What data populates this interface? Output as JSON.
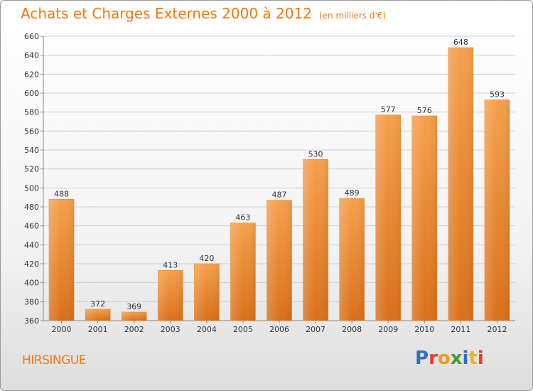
{
  "header": {
    "title": "Achats et Charges Externes 2000 à 2012",
    "subtitle": "(en milliers d'€)"
  },
  "footer": {
    "city": "HIRSINGUE",
    "logo_text": "Proxiti"
  },
  "colors": {
    "accent": "#f07a10",
    "bar_top": "#f5a04c",
    "bar_bottom": "#d9701a",
    "grid": "#cfcfcf",
    "logo_letters": [
      "#2f6fc0",
      "#e23b2a",
      "#f39a1e",
      "#3f9c35",
      "#2f6fc0",
      "#f0b320",
      "#e23b2a"
    ]
  },
  "chart_data": {
    "type": "bar",
    "title": "Achats et Charges Externes 2000 à 2012",
    "subtitle": "(en milliers d'€)",
    "categories": [
      "2000",
      "2001",
      "2002",
      "2003",
      "2004",
      "2005",
      "2006",
      "2007",
      "2008",
      "2009",
      "2010",
      "2011",
      "2012"
    ],
    "values": [
      488,
      372,
      369,
      413,
      420,
      463,
      487,
      530,
      489,
      577,
      576,
      648,
      593
    ],
    "ylim": [
      360,
      660
    ],
    "yticks": [
      360,
      380,
      400,
      420,
      440,
      460,
      480,
      500,
      520,
      540,
      560,
      580,
      600,
      620,
      640,
      660
    ],
    "grid": "horizontal",
    "data_labels": true
  }
}
